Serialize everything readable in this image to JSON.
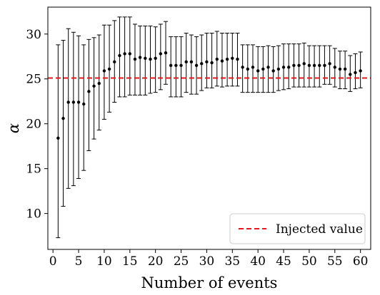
{
  "chart_data": {
    "type": "scatter",
    "xlabel": "Number of events",
    "ylabel": "α",
    "xlim": [
      -1,
      62
    ],
    "ylim": [
      6,
      33
    ],
    "xticks": [
      0,
      5,
      10,
      15,
      20,
      25,
      30,
      35,
      40,
      45,
      50,
      55,
      60
    ],
    "yticks": [
      10,
      15,
      20,
      25,
      30
    ],
    "grid": false,
    "legend_position": "lower-right",
    "injected_value": 25.1,
    "injected_label": "Injected value",
    "colors": {
      "points": "#000000",
      "errorbars": "#000000",
      "injected": "#e31a1c"
    },
    "series": [
      {
        "x": [
          1,
          2,
          3,
          4,
          5,
          6,
          7,
          8,
          9,
          10,
          11,
          12,
          13,
          14,
          15,
          16,
          17,
          18,
          19,
          20,
          21,
          22,
          23,
          24,
          25,
          26,
          27,
          28,
          29,
          30,
          31,
          32,
          33,
          34,
          35,
          36,
          37,
          38,
          39,
          40,
          41,
          42,
          43,
          44,
          45,
          46,
          47,
          48,
          49,
          50,
          51,
          52,
          53,
          54,
          55,
          56,
          57,
          58,
          59,
          60
        ],
        "y": [
          18.4,
          20.6,
          22.4,
          22.4,
          22.4,
          22.2,
          23.6,
          24.2,
          24.5,
          25.9,
          26.1,
          26.9,
          27.6,
          27.8,
          27.8,
          27.2,
          27.4,
          27.3,
          27.2,
          27.3,
          27.8,
          27.9,
          26.5,
          26.5,
          26.5,
          26.9,
          26.9,
          26.5,
          26.7,
          26.9,
          26.8,
          27.2,
          27.0,
          27.2,
          27.3,
          27.2,
          26.3,
          26.1,
          26.3,
          25.9,
          26.1,
          26.3,
          25.9,
          26.1,
          26.3,
          26.3,
          26.5,
          26.5,
          26.7,
          26.5,
          26.5,
          26.5,
          26.5,
          26.7,
          26.3,
          26.1,
          26.1,
          25.5,
          25.7,
          25.9
        ],
        "yerr_low": [
          7.3,
          10.8,
          12.8,
          13.1,
          13.9,
          14.8,
          17.0,
          18.3,
          19.3,
          20.5,
          21.3,
          22.4,
          23.0,
          23.0,
          23.2,
          23.2,
          23.2,
          23.2,
          23.4,
          23.5,
          23.8,
          24.4,
          23.0,
          23.0,
          23.0,
          23.5,
          23.3,
          23.3,
          23.7,
          24.0,
          24.0,
          24.2,
          24.1,
          24.2,
          24.2,
          24.2,
          23.5,
          23.5,
          23.5,
          23.5,
          23.5,
          23.5,
          23.5,
          23.7,
          23.8,
          23.9,
          24.1,
          24.1,
          24.1,
          24.1,
          24.1,
          24.1,
          24.4,
          24.4,
          24.1,
          23.9,
          23.9,
          23.6,
          23.9,
          24.0
        ],
        "yerr_high": [
          28.8,
          29.3,
          30.6,
          30.2,
          29.8,
          28.8,
          29.4,
          29.6,
          29.9,
          31.0,
          31.0,
          31.5,
          31.9,
          31.9,
          31.9,
          31.1,
          30.9,
          30.9,
          30.9,
          30.8,
          31.1,
          31.4,
          29.7,
          29.7,
          29.7,
          30.1,
          29.9,
          29.7,
          29.9,
          30.1,
          30.1,
          30.3,
          30.1,
          30.1,
          30.1,
          30.1,
          28.8,
          28.8,
          28.8,
          28.6,
          28.6,
          28.7,
          28.6,
          28.7,
          28.9,
          28.9,
          28.9,
          28.9,
          29.0,
          28.7,
          28.7,
          28.7,
          28.7,
          28.7,
          28.4,
          28.1,
          28.1,
          27.6,
          27.8,
          28.0
        ]
      }
    ]
  }
}
